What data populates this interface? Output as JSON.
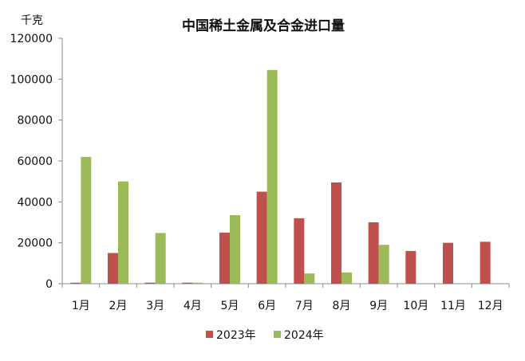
{
  "chart_data": {
    "type": "bar",
    "title": "中国稀土金属及合金进口量",
    "ylabel": "千克",
    "xlabel": "",
    "ylim": [
      0,
      120000
    ],
    "yticks": [
      "0",
      "20000",
      "40000",
      "60000",
      "80000",
      "100000",
      "120000"
    ],
    "categories": [
      "1月",
      "2月",
      "3月",
      "4月",
      "5月",
      "6月",
      "7月",
      "8月",
      "9月",
      "10月",
      "11月",
      "12月"
    ],
    "series": [
      {
        "name": "2023年",
        "color": "#c0504d",
        "values": [
          500,
          15000,
          500,
          500,
          25000,
          45000,
          32000,
          49500,
          30000,
          16000,
          20000,
          20500
        ]
      },
      {
        "name": "2024年",
        "color": "#9bbb59",
        "values": [
          62000,
          50000,
          24800,
          500,
          33500,
          104500,
          5000,
          5500,
          19000,
          null,
          null,
          null
        ]
      }
    ],
    "legend_position": "bottom",
    "grid": false
  }
}
